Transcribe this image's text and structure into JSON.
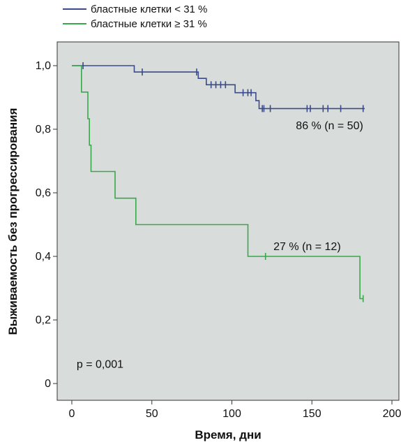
{
  "chart_data": {
    "type": "line",
    "step": true,
    "xlabel": "Время, дни",
    "ylabel": "Выживаемость без прогрессирования",
    "xlim": [
      0,
      200
    ],
    "ylim": [
      0,
      1.0
    ],
    "x_ticks": [
      0,
      50,
      100,
      150,
      200
    ],
    "x_tick_labels": [
      "0",
      "50",
      "100",
      "150",
      "200"
    ],
    "y_ticks": [
      0,
      0.2,
      0.4,
      0.6,
      0.8,
      1.0
    ],
    "y_tick_labels": [
      "0",
      "0,2",
      "0,4",
      "0,6",
      "0,8",
      "1,0"
    ],
    "background": "#d8dcdb",
    "legend_position": "top-left",
    "series": [
      {
        "name": "бластные клетки < 31 %",
        "color": "#3a4a8a",
        "points": [
          [
            0,
            1.0
          ],
          [
            39,
            1.0
          ],
          [
            39,
            0.98
          ],
          [
            79,
            0.98
          ],
          [
            79,
            0.96
          ],
          [
            84,
            0.96
          ],
          [
            84,
            0.94
          ],
          [
            102,
            0.94
          ],
          [
            102,
            0.915
          ],
          [
            115,
            0.915
          ],
          [
            115,
            0.89
          ],
          [
            117,
            0.89
          ],
          [
            117,
            0.865
          ],
          [
            183,
            0.865
          ]
        ],
        "censored": [
          [
            7,
            1.0
          ],
          [
            44,
            0.98
          ],
          [
            78,
            0.98
          ],
          [
            87,
            0.94
          ],
          [
            90,
            0.94
          ],
          [
            93,
            0.94
          ],
          [
            96,
            0.94
          ],
          [
            107,
            0.915
          ],
          [
            110,
            0.915
          ],
          [
            112,
            0.915
          ],
          [
            119,
            0.865
          ],
          [
            120,
            0.865
          ],
          [
            124,
            0.865
          ],
          [
            147,
            0.865
          ],
          [
            149,
            0.865
          ],
          [
            157,
            0.865
          ],
          [
            160,
            0.865
          ],
          [
            168,
            0.865
          ],
          [
            182,
            0.865
          ]
        ]
      },
      {
        "name": "бластные клетки ≥ 31 %",
        "color": "#3aa84a",
        "points": [
          [
            0,
            1.0
          ],
          [
            6,
            1.0
          ],
          [
            6,
            0.917
          ],
          [
            10,
            0.917
          ],
          [
            10,
            0.833
          ],
          [
            11,
            0.833
          ],
          [
            11,
            0.75
          ],
          [
            12,
            0.75
          ],
          [
            12,
            0.667
          ],
          [
            27,
            0.667
          ],
          [
            27,
            0.583
          ],
          [
            40,
            0.583
          ],
          [
            40,
            0.5
          ],
          [
            110,
            0.5
          ],
          [
            110,
            0.4
          ],
          [
            180,
            0.4
          ],
          [
            180,
            0.267
          ],
          [
            182,
            0.267
          ]
        ],
        "censored": [
          [
            121,
            0.4
          ],
          [
            182,
            0.267
          ]
        ]
      }
    ],
    "annotations": [
      {
        "text": "86 % (n = 50)",
        "x": 140,
        "y": 0.8
      },
      {
        "text": "27 % (n = 12)",
        "x": 126,
        "y": 0.42
      },
      {
        "text": "p = 0,001",
        "x": 3,
        "y": 0.05
      }
    ]
  }
}
